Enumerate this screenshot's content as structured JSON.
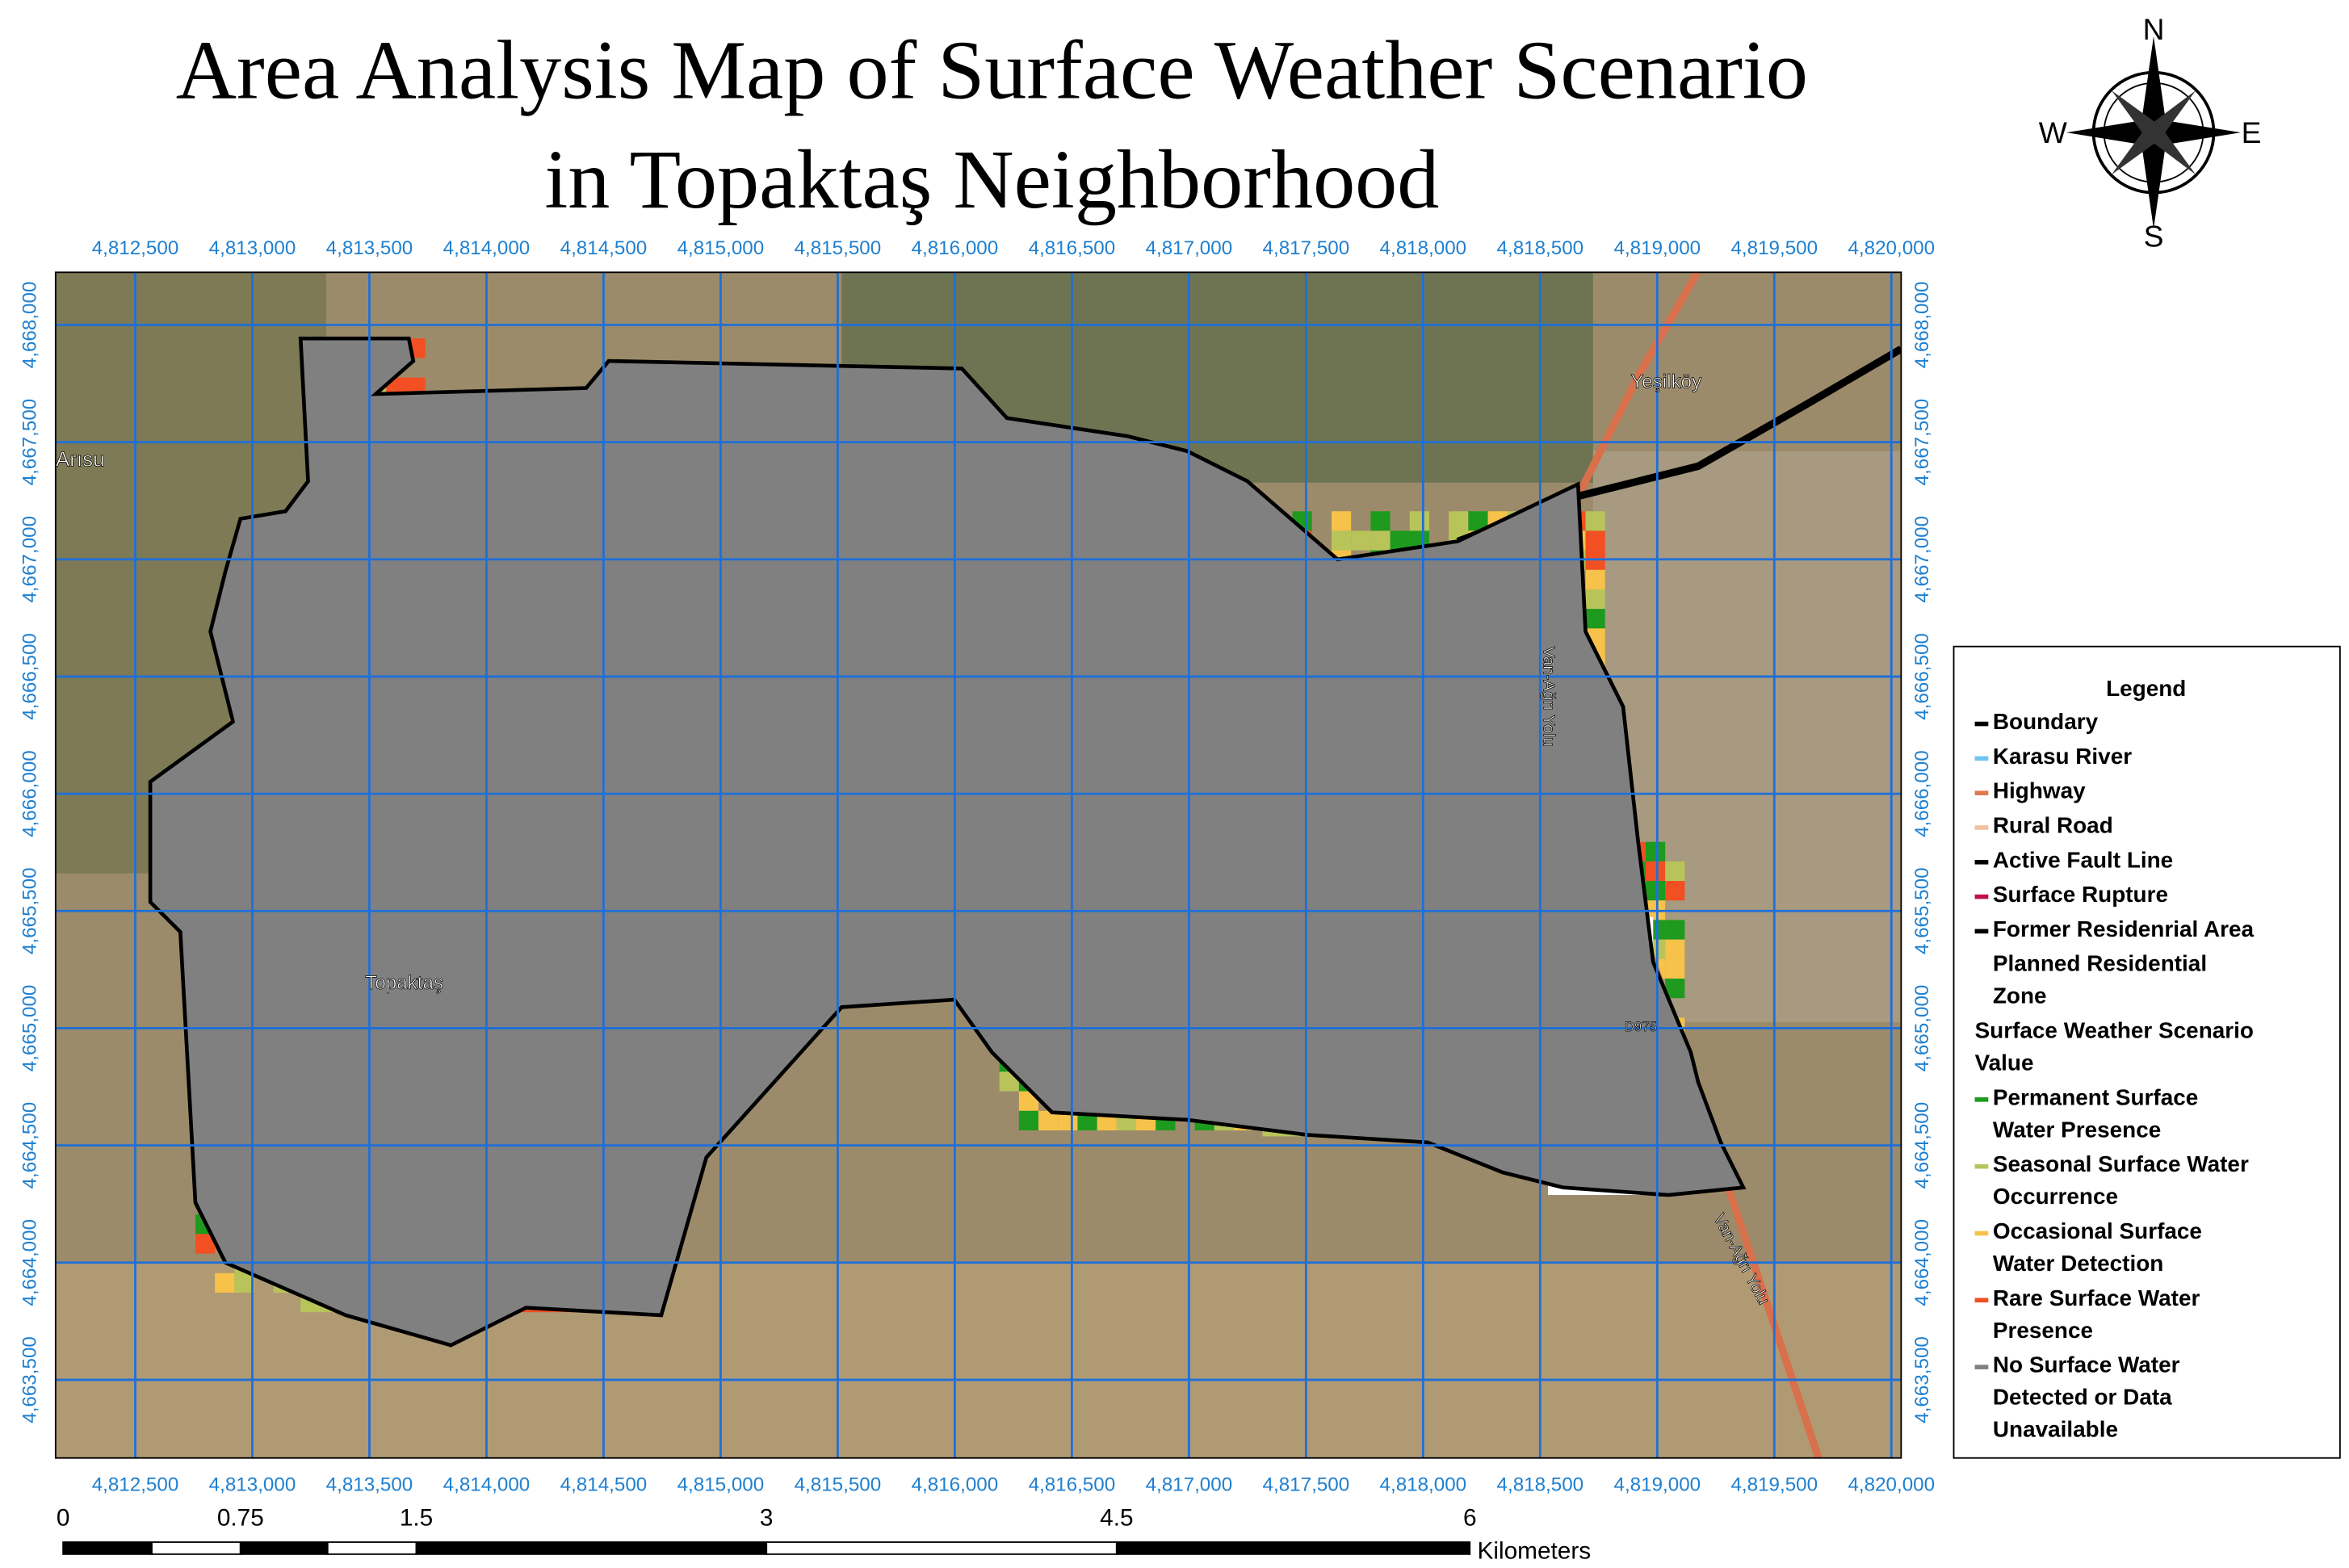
{
  "title": [
    "Area Analysis Map of Surface Weather Scenario",
    "in Topaktaş Neighborhood"
  ],
  "compass": {
    "north": "N",
    "south": "S",
    "west": "W",
    "east": "E"
  },
  "x_coordinates": [
    "4,812,500",
    "4,813,000",
    "4,813,500",
    "4,814,000",
    "4,814,500",
    "4,815,000",
    "4,815,500",
    "4,816,000",
    "4,816,500",
    "4,817,000",
    "4,817,500",
    "4,818,000",
    "4,818,500",
    "4,819,000",
    "4,819,500",
    "4,820,000"
  ],
  "y_coordinates": [
    "4,668,000",
    "4,667,500",
    "4,667,000",
    "4,666,500",
    "4,666,000",
    "4,665,500",
    "4,665,000",
    "4,664,500",
    "4,664,000",
    "4,663,500"
  ],
  "places": [
    "Arısu",
    "Yeşilköy",
    "Topaktaş",
    "Van-Ağrı Yolu",
    "Van-Ağrı Yolu",
    "D975"
  ],
  "legend": {
    "title": "Legend",
    "items": [
      {
        "label": [
          "Boundary"
        ],
        "color": "#000000"
      },
      {
        "label": [
          "Karasu River"
        ],
        "color": "#6ec6f0"
      },
      {
        "label": [
          "Highway"
        ],
        "color": "#e07850"
      },
      {
        "label": [
          "Rural Road"
        ],
        "color": "#f0c0a0"
      },
      {
        "label": [
          "Active Fault Line"
        ],
        "color": "#000000"
      },
      {
        "label": [
          "Surface Rupture"
        ],
        "color": "#c0104a"
      },
      {
        "label": [
          "Former Residenrial Area"
        ],
        "color": "#000000"
      },
      {
        "label": [
          "Planned Residential",
          "Zone"
        ],
        "color": "#ffffff"
      },
      {
        "label": [
          "Surface Weather Scenario",
          "Value"
        ]
      },
      {
        "label": [
          "Permanent Surface",
          "Water Presence"
        ],
        "color": "#1e9a1e"
      },
      {
        "label": [
          "Seasonal Surface Water",
          "Occurrence"
        ],
        "color": "#b8c45a"
      },
      {
        "label": [
          "Occasional Surface",
          "Water Detection"
        ],
        "color": "#f7c24a"
      },
      {
        "label": [
          "Rare Surface Water",
          "Presence"
        ],
        "color": "#f25022"
      },
      {
        "label": [
          "No Surface Water",
          "Detected or Data",
          "Unavailable"
        ],
        "color": "#808080"
      }
    ]
  },
  "scale_bar": {
    "labels": [
      "0",
      "0.75",
      "1.5",
      "3",
      "4.5",
      "6"
    ],
    "unit": "Kilometers"
  }
}
